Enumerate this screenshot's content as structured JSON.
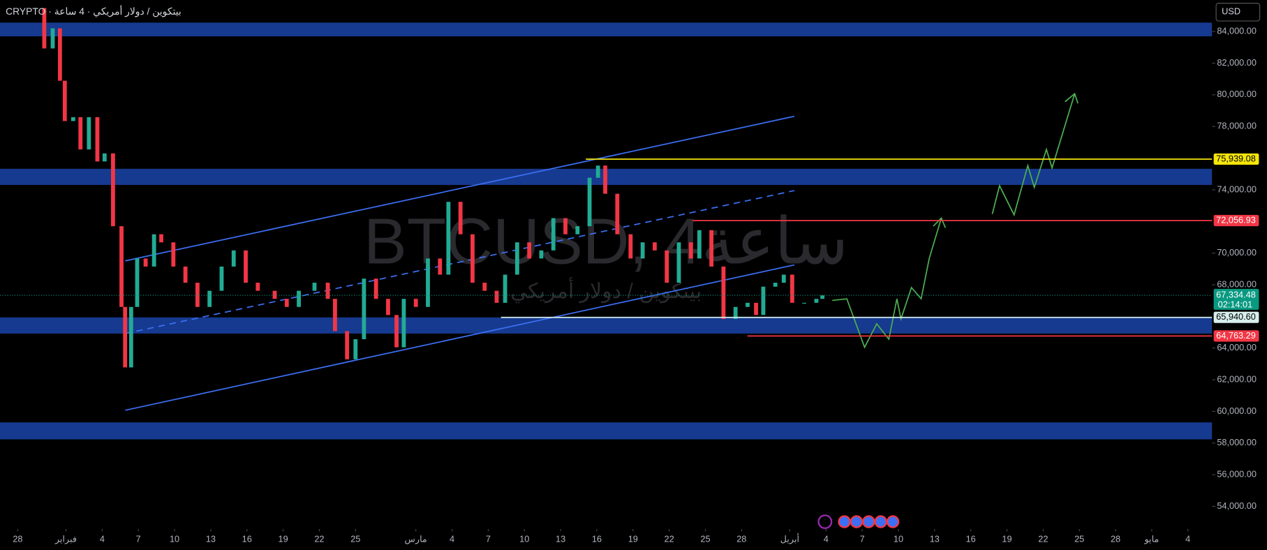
{
  "header": {
    "symbol": "CRYPTO · بيتكوين / دولار أمريكي · 4 ساعة",
    "currency": "USD"
  },
  "chart_data": {
    "type": "candlestick",
    "watermark": "BTCUSD, 4ساعة",
    "watermark_subtitle": "بيتكوين / دولار أمريكي",
    "x": [
      1.5,
      2.2,
      2.9,
      3.5,
      3.9,
      4.6,
      5.2,
      5.9,
      6.6,
      7.2,
      7.9,
      8.6,
      8.9,
      9.4,
      9.9,
      10.6,
      11.3,
      11.9,
      12.9,
      13.9,
      14.9,
      15.9,
      16.9,
      17.9,
      18.9,
      19.9,
      21.3,
      22.3,
      23.3,
      24.6,
      25.7,
      26.3,
      27.3,
      28.0,
      28.7,
      29.7,
      30.7,
      31.4,
      32.0,
      33.0,
      34.0,
      35.0,
      35.7,
      36.7,
      37.7,
      38.7,
      39.7,
      40.4,
      41.4,
      42.4,
      43.4,
      44.4,
      45.4,
      46.4,
      47.4,
      48.1,
      48.7,
      49.7,
      50.8,
      51.8,
      52.8,
      53.8,
      54.8,
      55.8,
      56.5,
      57.5,
      58.5,
      59.5,
      60.5,
      61.2,
      61.8,
      62.8,
      63.5,
      64.2,
      65.2,
      66.2,
      66.7
    ],
    "values": [
      85480,
      82930,
      84200,
      80890,
      78340,
      78590,
      76550,
      78590,
      75790,
      76300,
      71700,
      66600,
      62780,
      66600,
      69660,
      69150,
      71190,
      70680,
      69150,
      68130,
      66600,
      67620,
      69150,
      70170,
      68130,
      67620,
      67110,
      66600,
      67620,
      68130,
      67110,
      65070,
      63290,
      64560,
      68390,
      67110,
      66090,
      64050,
      67110,
      66600,
      69660,
      68640,
      73240,
      71190,
      68130,
      67620,
      66860,
      68640,
      70680,
      69660,
      70170,
      72210,
      71190,
      71700,
      74760,
      75530,
      73750,
      71190,
      69660,
      70680,
      70170,
      68130,
      70680,
      69660,
      71450,
      69150,
      65840,
      66600,
      66860,
      66090,
      67880,
      68130,
      68640,
      66860,
      66860,
      67110,
      67330
    ],
    "up_color": "#22ab94",
    "down_color": "#f23645",
    "xlim": [
      -1.47,
      99
    ],
    "ylim": [
      52571,
      85990
    ],
    "yticks": [
      {
        "value": 54000,
        "label": "54,000.00"
      },
      {
        "value": 56000,
        "label": "56,000.00"
      },
      {
        "value": 58000,
        "label": "58,000.00"
      },
      {
        "value": 60000,
        "label": "60,000.00"
      },
      {
        "value": 62000,
        "label": "62,000.00"
      },
      {
        "value": 64000,
        "label": "64,000.00"
      },
      {
        "value": 68000,
        "label": "68,000.00"
      },
      {
        "value": 70000,
        "label": "70,000.00"
      },
      {
        "value": 74000,
        "label": "74,000.00"
      },
      {
        "value": 78000,
        "label": "78,000.00"
      },
      {
        "value": 80000,
        "label": "80,000.00"
      },
      {
        "value": 82000,
        "label": "82,000.00"
      },
      {
        "value": 84000,
        "label": "84,000.00"
      }
    ],
    "xticks": [
      {
        "value": 0,
        "label": "28"
      },
      {
        "value": 4,
        "label": "فبراير"
      },
      {
        "value": 7,
        "label": "4"
      },
      {
        "value": 10,
        "label": "7"
      },
      {
        "value": 13,
        "label": "10"
      },
      {
        "value": 16,
        "label": "13"
      },
      {
        "value": 19,
        "label": "16"
      },
      {
        "value": 22,
        "label": "19"
      },
      {
        "value": 25,
        "label": "22"
      },
      {
        "value": 28,
        "label": "25"
      },
      {
        "value": 33,
        "label": "مارس"
      },
      {
        "value": 36,
        "label": "4"
      },
      {
        "value": 39,
        "label": "7"
      },
      {
        "value": 42,
        "label": "10"
      },
      {
        "value": 45,
        "label": "13"
      },
      {
        "value": 48,
        "label": "16"
      },
      {
        "value": 51,
        "label": "19"
      },
      {
        "value": 54,
        "label": "22"
      },
      {
        "value": 57,
        "label": "25"
      },
      {
        "value": 60,
        "label": "28"
      },
      {
        "value": 64,
        "label": "أبريل"
      },
      {
        "value": 67,
        "label": "4"
      },
      {
        "value": 70,
        "label": "7"
      },
      {
        "value": 73,
        "label": "10"
      },
      {
        "value": 76,
        "label": "13"
      },
      {
        "value": 79,
        "label": "16"
      },
      {
        "value": 82,
        "label": "19"
      },
      {
        "value": 85,
        "label": "22"
      },
      {
        "value": 88,
        "label": "25"
      },
      {
        "value": 91,
        "label": "28"
      },
      {
        "value": 94,
        "label": "مايو"
      },
      {
        "value": 97,
        "label": "4"
      }
    ],
    "price_labels": [
      {
        "value": 75939.08,
        "label": "75,939.08",
        "color": "#f5e50a",
        "text_color": "#000000"
      },
      {
        "value": 72056.93,
        "label": "72,056.93",
        "color": "#f23645",
        "text_color": "#ffffff"
      },
      {
        "value": 65940.6,
        "label": "65,940.60",
        "color": "#d6eeec",
        "text_color": "#000000"
      },
      {
        "value": 64763.29,
        "label": "64,763.29",
        "color": "#f23645",
        "text_color": "#ffffff"
      }
    ],
    "current_price": {
      "value": 67334.48,
      "label": "67,334.48",
      "countdown": "02:14:01",
      "color": "#089981"
    }
  }
}
